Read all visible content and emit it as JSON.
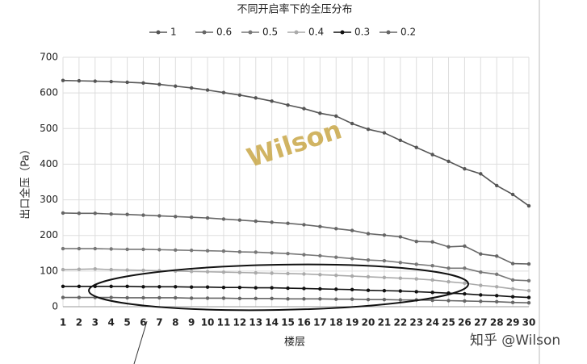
{
  "chart_data": {
    "type": "line",
    "title": "不同开启率下的全压分布",
    "y_label": "出口全压（Pa）",
    "x_label": "楼层",
    "x": [
      1,
      2,
      3,
      4,
      5,
      6,
      7,
      8,
      9,
      10,
      11,
      12,
      13,
      14,
      15,
      16,
      17,
      18,
      19,
      20,
      21,
      22,
      23,
      24,
      25,
      26,
      27,
      28,
      29,
      30
    ],
    "xlim": [
      1,
      30
    ],
    "ylim": [
      0,
      700
    ],
    "yticks": [
      0,
      100,
      200,
      300,
      400,
      500,
      600,
      700
    ],
    "grid": true,
    "legend": "top",
    "series": [
      {
        "name": "1",
        "color": "#555555",
        "values": [
          635,
          634,
          633,
          632,
          630,
          628,
          624,
          619,
          614,
          608,
          601,
          594,
          586,
          577,
          566,
          556,
          543,
          535,
          514,
          498,
          488,
          467,
          447,
          427,
          408,
          387,
          373,
          340,
          315,
          283
        ]
      },
      {
        "name": "0.6",
        "color": "#666666",
        "values": [
          263,
          262,
          262,
          260,
          259,
          257,
          255,
          253,
          251,
          249,
          246,
          243,
          240,
          237,
          234,
          230,
          225,
          219,
          214,
          205,
          201,
          196,
          183,
          182,
          168,
          170,
          148,
          142,
          121,
          120
        ]
      },
      {
        "name": "0.5",
        "color": "#777777",
        "values": [
          163,
          163,
          163,
          162,
          161,
          161,
          160,
          159,
          158,
          157,
          156,
          154,
          153,
          151,
          149,
          146,
          143,
          139,
          135,
          131,
          129,
          124,
          119,
          115,
          108,
          108,
          97,
          91,
          75,
          73
        ]
      },
      {
        "name": "0.4",
        "color": "#aaaaaa",
        "values": [
          104,
          105,
          106,
          104,
          103,
          102,
          101,
          100,
          99,
          98,
          97,
          96,
          95,
          94,
          93,
          92,
          90,
          88,
          86,
          84,
          82,
          80,
          78,
          75,
          70,
          66,
          60,
          56,
          50,
          45
        ]
      },
      {
        "name": "0.3",
        "color": "#111111",
        "values": [
          57,
          57,
          57,
          57,
          57,
          56,
          56,
          56,
          55,
          55,
          54,
          54,
          53,
          53,
          52,
          51,
          50,
          49,
          48,
          46,
          45,
          44,
          42,
          40,
          38,
          36,
          33,
          31,
          28,
          26
        ]
      },
      {
        "name": "0.2",
        "color": "#666666",
        "values": [
          26,
          26,
          26,
          26,
          25,
          25,
          25,
          25,
          24,
          24,
          24,
          23,
          23,
          23,
          22,
          22,
          22,
          21,
          21,
          20,
          20,
          19,
          19,
          18,
          17,
          16,
          15,
          14,
          12,
          11
        ]
      }
    ],
    "watermark": "Wilson"
  },
  "footer_watermark": "知乎 @Wilson"
}
